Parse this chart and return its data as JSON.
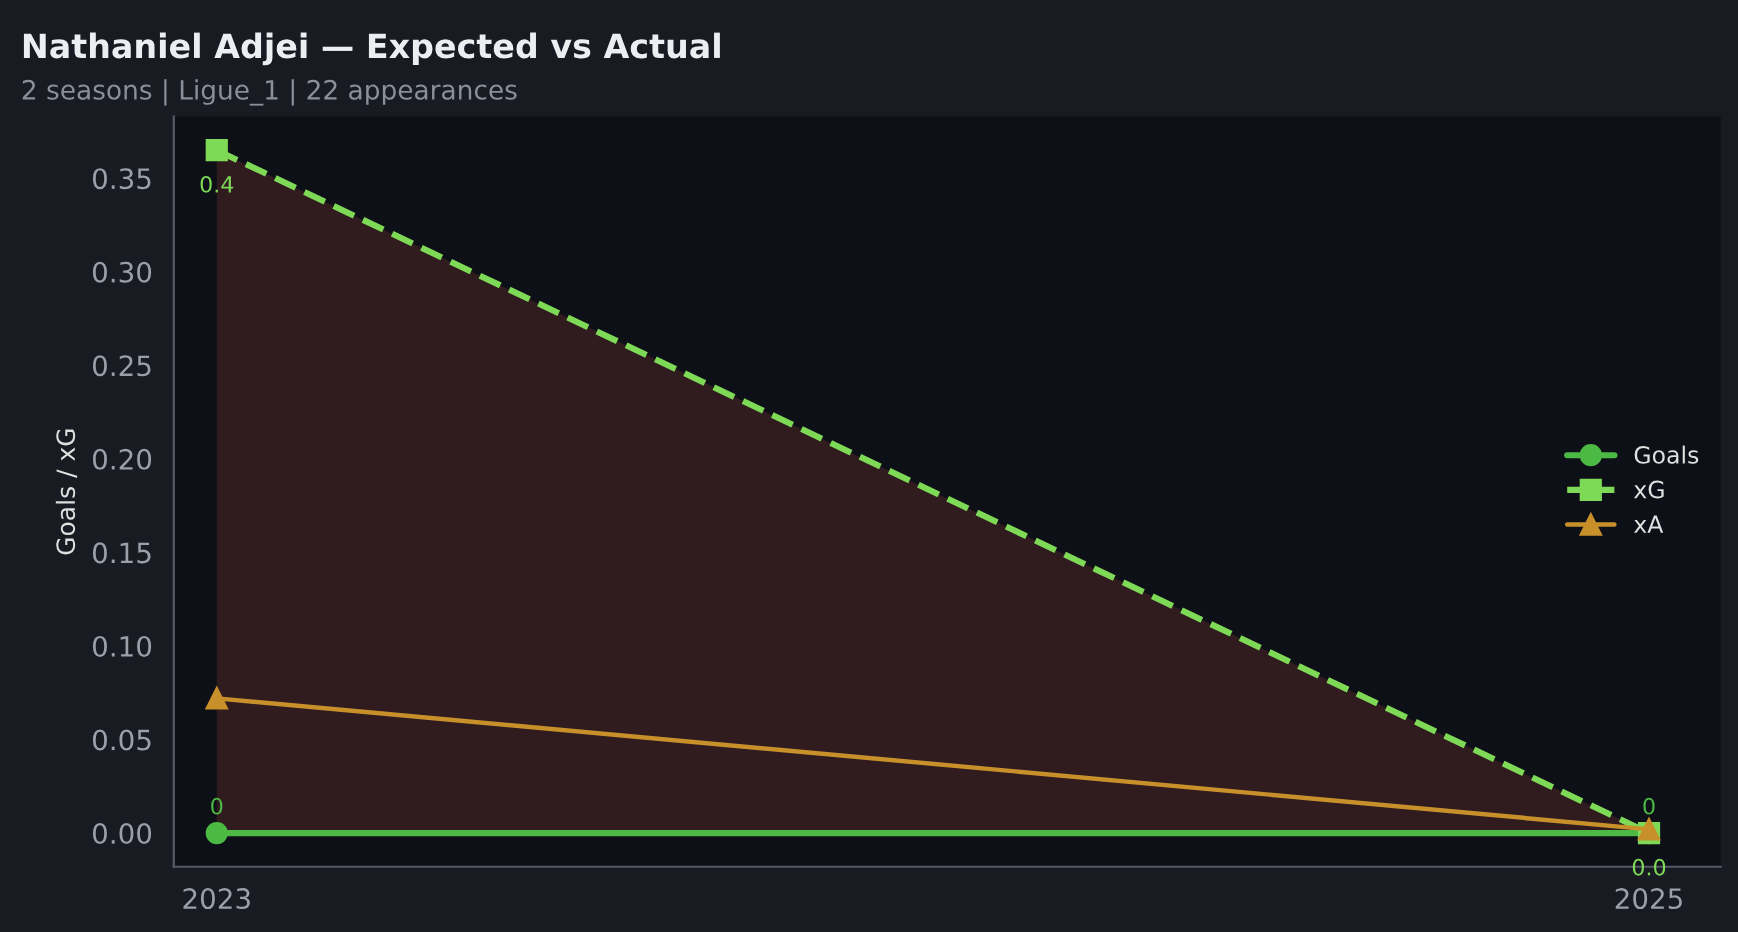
{
  "chart_data": {
    "type": "line",
    "title": "Nathaniel Adjei — Expected vs Actual",
    "subtitle": "2 seasons | Ligue_1 | 22 appearances",
    "ylabel": "Goals / xG",
    "x": [
      2023,
      2025
    ],
    "xlim": [
      2022.94,
      2025.1
    ],
    "xticks": [
      2023,
      2025
    ],
    "series": [
      {
        "name": "Goals",
        "color": "#4cb944",
        "values": [
          0,
          0
        ],
        "marker": "circle",
        "line_style": "solid",
        "value_labels": [
          "0",
          "0"
        ]
      },
      {
        "name": "xG",
        "color": "#7ed957",
        "values": [
          0.365,
          0.0
        ],
        "marker": "square",
        "line_style": "dashed",
        "value_labels": [
          "0.4",
          "0.0"
        ],
        "lower": [
          0,
          0
        ],
        "upper": [
          0.365,
          0.0
        ]
      },
      {
        "name": "xA",
        "color": "#c8902a",
        "values": [
          0.072,
          0.002
        ],
        "marker": "triangle",
        "line_style": "solid"
      }
    ],
    "ylim": [
      -0.018,
      0.383
    ],
    "yticks": [
      {
        "value": 0,
        "label": "0.00"
      },
      {
        "value": 0.05,
        "label": "0.05"
      },
      {
        "value": 0.1,
        "label": "0.10"
      },
      {
        "value": 0.15,
        "label": "0.15"
      },
      {
        "value": 0.2,
        "label": "0.20"
      },
      {
        "value": 0.25,
        "label": "0.25"
      },
      {
        "value": 0.3,
        "label": "0.30"
      },
      {
        "value": 0.35,
        "label": "0.35"
      }
    ],
    "grid": false,
    "legend": "center right"
  }
}
